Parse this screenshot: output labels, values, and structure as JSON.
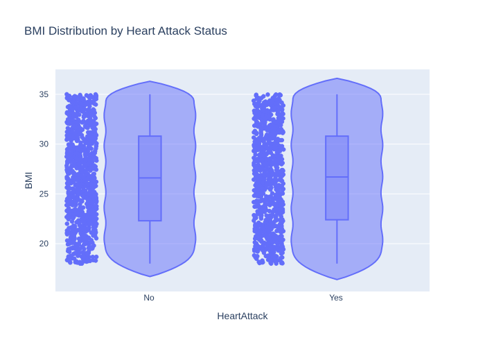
{
  "chart_data": {
    "type": "violin",
    "title": "BMI Distribution by Heart Attack Status",
    "xlabel": "HeartAttack",
    "ylabel": "BMI",
    "categories": [
      "No",
      "Yes"
    ],
    "ylim": [
      15.2,
      37.5
    ],
    "yticks": [
      20,
      25,
      30,
      35
    ],
    "grid": true,
    "legend": "none",
    "points": "all",
    "groups": [
      {
        "category": "No",
        "data_min": 18.0,
        "data_max": 35.0,
        "q1": 22.3,
        "median": 26.6,
        "q3": 30.8,
        "whisker_low": 18.0,
        "whisker_high": 35.0,
        "kde_extent": [
          16.7,
          36.3
        ]
      },
      {
        "category": "Yes",
        "data_min": 18.0,
        "data_max": 35.0,
        "q1": 22.4,
        "median": 26.7,
        "q3": 30.8,
        "whisker_low": 18.0,
        "whisker_high": 35.0,
        "kde_extent": [
          16.4,
          36.6
        ]
      }
    ],
    "colors": {
      "series": "#636efa",
      "violin_fill": "rgba(99,110,250,0.5)",
      "plot_bg": "#e5ecf6",
      "grid": "#ffffff",
      "text": "#2a3f5f"
    }
  }
}
